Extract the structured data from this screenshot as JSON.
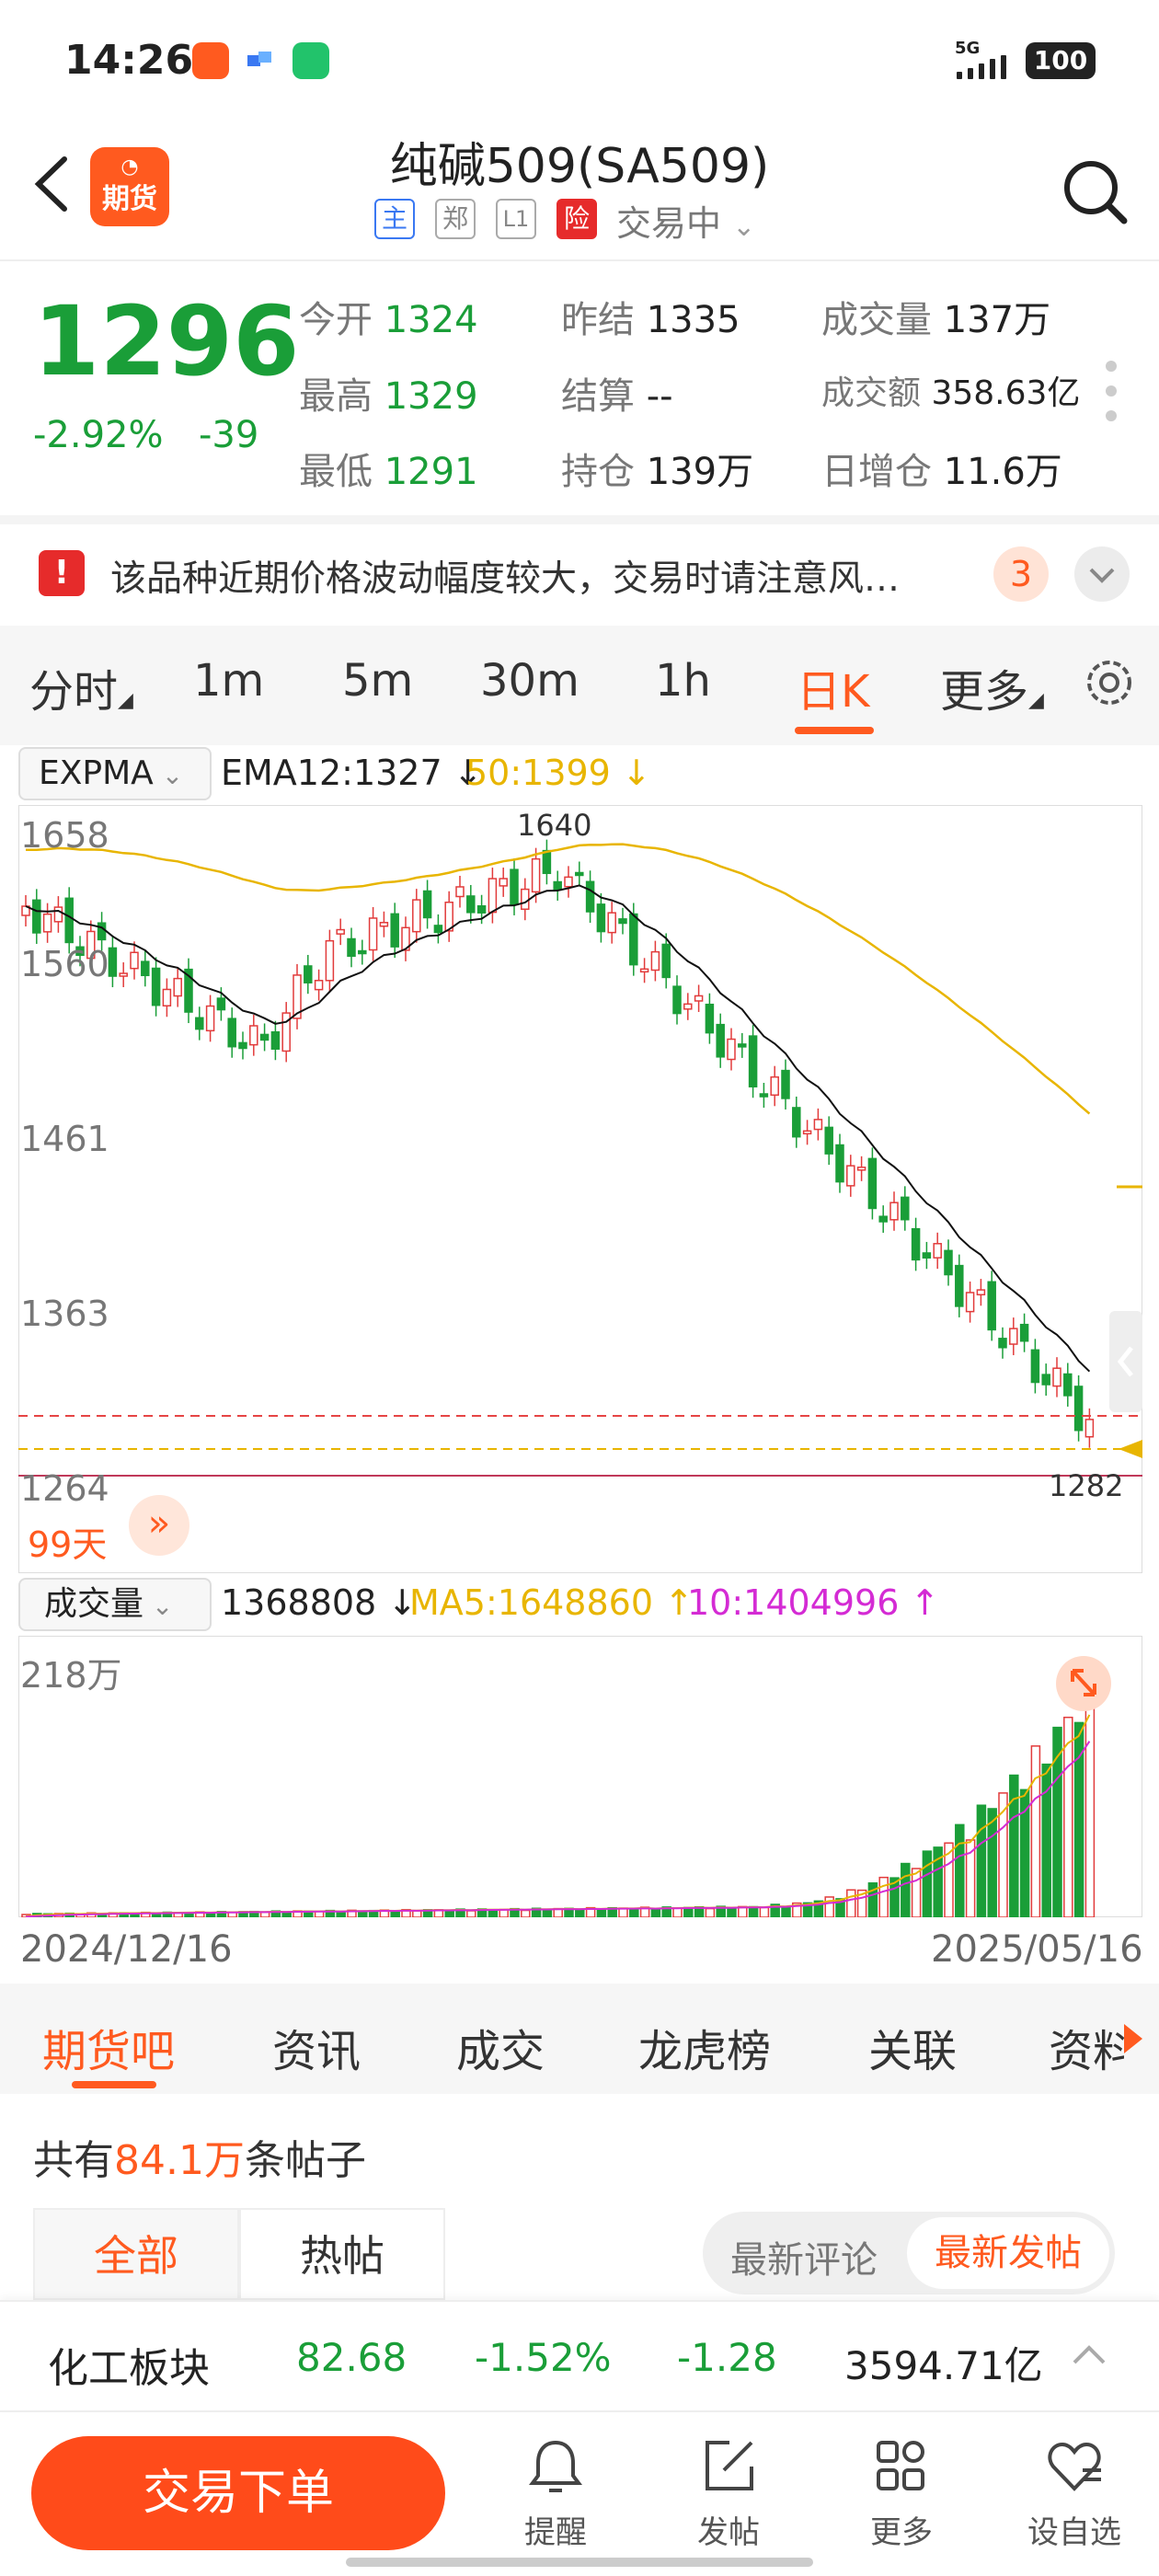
{
  "status_bar": {
    "time": "14:26",
    "network": "5G",
    "battery": "100"
  },
  "header": {
    "logo_label": "期货",
    "title": "纯碱509(SA509)",
    "tags": [
      "主",
      "郑",
      "L1",
      "险"
    ],
    "trade_status": "交易中"
  },
  "quote": {
    "price": "1296",
    "change_pct": "-2.92%",
    "change": "-39",
    "fields": [
      {
        "label": "今开",
        "value": "1324"
      },
      {
        "label": "昨结",
        "value": "1335"
      },
      {
        "label": "成交量",
        "value": "137万"
      },
      {
        "label": "最高",
        "value": "1329"
      },
      {
        "label": "结算",
        "value": "--"
      },
      {
        "label": "成交额",
        "value": "358.63亿"
      },
      {
        "label": "最低",
        "value": "1291"
      },
      {
        "label": "持仓",
        "value": "139万"
      },
      {
        "label": "日增仓",
        "value": "11.6万"
      }
    ]
  },
  "notice": {
    "text": "该品种近期价格波动幅度较大，交易时请注意风…",
    "count": "3"
  },
  "period_tabs": [
    "分时",
    "1m",
    "5m",
    "30m",
    "1h",
    "日K",
    "更多"
  ],
  "active_period": "日K",
  "indicator": {
    "name": "EXPMA",
    "ema12": "EMA12:1327",
    "ema50": "50:1399"
  },
  "kline": {
    "y_labels": [
      "1658",
      "1560",
      "1461",
      "1363",
      "1264"
    ],
    "high_mark": "1640",
    "low_mark": "1282",
    "days": "99天"
  },
  "volume": {
    "name": "成交量",
    "value": "1368808",
    "ma5": "MA5:1648860",
    "ma10": "10:1404996",
    "max_label": "218万",
    "start_date": "2024/12/16",
    "end_date": "2025/05/16"
  },
  "chart_data": {
    "type": "candlestick",
    "price_axis": [
      1264,
      1363,
      1461,
      1560,
      1658
    ],
    "last_close": 1296,
    "highest": 1640,
    "lowest": 1282,
    "x_range": [
      "2024/12/16",
      "2025/05/16"
    ]
  },
  "content_tabs": [
    "期货吧",
    "资讯",
    "成交",
    "龙虎榜",
    "关联",
    "资料"
  ],
  "posts": {
    "prefix": "共有",
    "count": "84.1万",
    "suffix": "条帖子"
  },
  "filter_tabs": [
    "全部",
    "热帖"
  ],
  "sort_tabs": [
    "最新评论",
    "最新发帖"
  ],
  "sector": {
    "name": "化工板块",
    "value": "82.68",
    "pct": "-1.52%",
    "change": "-1.28",
    "amount": "3594.71亿"
  },
  "bottom_nav": {
    "trade_button": "交易下单",
    "items": [
      "提醒",
      "发帖",
      "更多",
      "设自选"
    ]
  }
}
